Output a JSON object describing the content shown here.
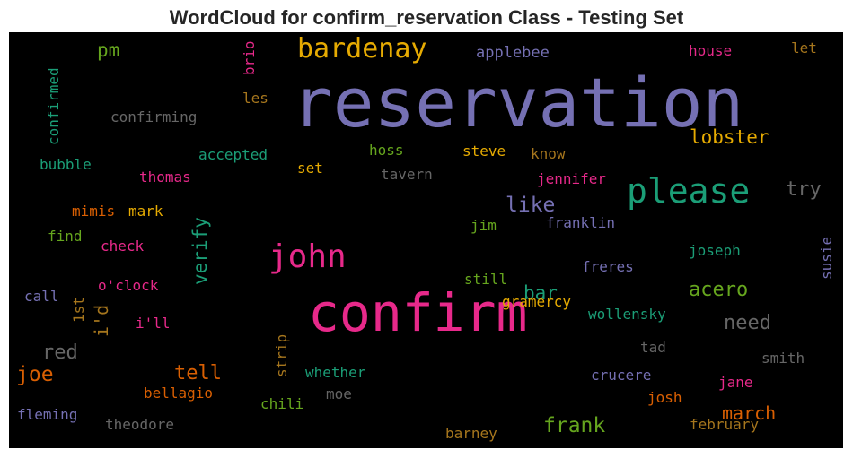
{
  "title": "WordCloud for confirm_reservation Class - Testing Set",
  "chart_data": {
    "type": "wordcloud",
    "title": "WordCloud for confirm_reservation Class - Testing Set",
    "background": "#000000",
    "colormap": "Dark2",
    "words": [
      {
        "text": "reservation",
        "color": "#7570b3"
      },
      {
        "text": "confirm",
        "color": "#e7298a"
      },
      {
        "text": "please",
        "color": "#1b9e77"
      },
      {
        "text": "john",
        "color": "#e7298a"
      },
      {
        "text": "bardenay",
        "color": "#e6ab02"
      },
      {
        "text": "lobster",
        "color": "#e6ab02"
      },
      {
        "text": "frank",
        "color": "#66a61e"
      },
      {
        "text": "verify",
        "color": "#1b9e77"
      },
      {
        "text": "like",
        "color": "#7570b3"
      },
      {
        "text": "try",
        "color": "#666666"
      },
      {
        "text": "acero",
        "color": "#66a61e"
      },
      {
        "text": "need",
        "color": "#666666"
      },
      {
        "text": "march",
        "color": "#d95f02"
      },
      {
        "text": "tell",
        "color": "#d95f02"
      },
      {
        "text": "joe",
        "color": "#d95f02"
      },
      {
        "text": "red",
        "color": "#666666"
      },
      {
        "text": "bar",
        "color": "#1b9e77"
      },
      {
        "text": "i'd",
        "color": "#a6761d"
      },
      {
        "text": "pm",
        "color": "#66a61e"
      },
      {
        "text": "applebee",
        "color": "#7570b3"
      },
      {
        "text": "house",
        "color": "#e7298a"
      },
      {
        "text": "let",
        "color": "#a6761d"
      },
      {
        "text": "brio",
        "color": "#e7298a"
      },
      {
        "text": "les",
        "color": "#a6761d"
      },
      {
        "text": "confirmed",
        "color": "#1b9e77"
      },
      {
        "text": "confirming",
        "color": "#666666"
      },
      {
        "text": "accepted",
        "color": "#1b9e77"
      },
      {
        "text": "hoss",
        "color": "#66a61e"
      },
      {
        "text": "steve",
        "color": "#e6ab02"
      },
      {
        "text": "know",
        "color": "#a6761d"
      },
      {
        "text": "bubble",
        "color": "#1b9e77"
      },
      {
        "text": "set",
        "color": "#e6ab02"
      },
      {
        "text": "thomas",
        "color": "#e7298a"
      },
      {
        "text": "tavern",
        "color": "#666666"
      },
      {
        "text": "jennifer",
        "color": "#e7298a"
      },
      {
        "text": "mimis",
        "color": "#d95f02"
      },
      {
        "text": "mark",
        "color": "#e6ab02"
      },
      {
        "text": "franklin",
        "color": "#7570b3"
      },
      {
        "text": "jim",
        "color": "#66a61e"
      },
      {
        "text": "find",
        "color": "#66a61e"
      },
      {
        "text": "check",
        "color": "#e7298a"
      },
      {
        "text": "joseph",
        "color": "#1b9e77"
      },
      {
        "text": "susie",
        "color": "#7570b3"
      },
      {
        "text": "freres",
        "color": "#7570b3"
      },
      {
        "text": "still",
        "color": "#66a61e"
      },
      {
        "text": "o'clock",
        "color": "#e7298a"
      },
      {
        "text": "call",
        "color": "#7570b3"
      },
      {
        "text": "1st",
        "color": "#a6761d"
      },
      {
        "text": "gramercy",
        "color": "#e6ab02"
      },
      {
        "text": "wollensky",
        "color": "#1b9e77"
      },
      {
        "text": "i'll",
        "color": "#e7298a"
      },
      {
        "text": "tad",
        "color": "#666666"
      },
      {
        "text": "smith",
        "color": "#666666"
      },
      {
        "text": "strip",
        "color": "#a6761d"
      },
      {
        "text": "whether",
        "color": "#1b9e77"
      },
      {
        "text": "crucere",
        "color": "#7570b3"
      },
      {
        "text": "bellagio",
        "color": "#d95f02"
      },
      {
        "text": "moe",
        "color": "#666666"
      },
      {
        "text": "jane",
        "color": "#e7298a"
      },
      {
        "text": "josh",
        "color": "#d95f02"
      },
      {
        "text": "chili",
        "color": "#66a61e"
      },
      {
        "text": "fleming",
        "color": "#7570b3"
      },
      {
        "text": "theodore",
        "color": "#666666"
      },
      {
        "text": "february",
        "color": "#a6761d"
      },
      {
        "text": "barney",
        "color": "#a6761d"
      }
    ]
  }
}
